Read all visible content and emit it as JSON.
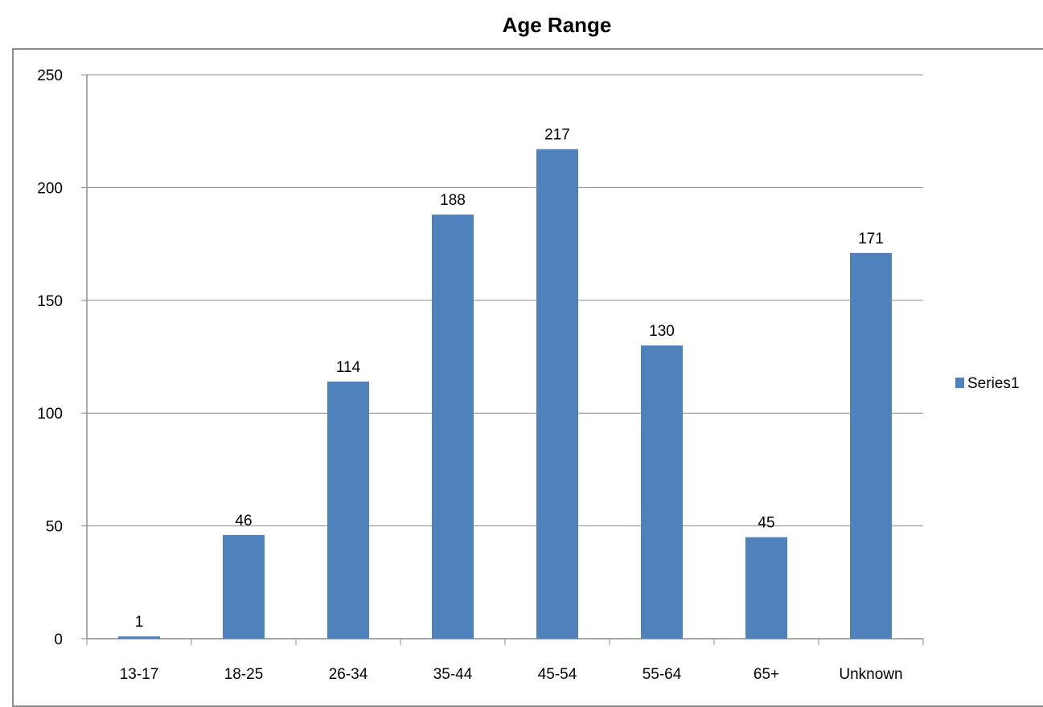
{
  "chart_data": {
    "type": "bar",
    "title": "Age Range",
    "categories": [
      "13-17",
      "18-25",
      "26-34",
      "35-44",
      "45-54",
      "55-64",
      "65+",
      "Unknown"
    ],
    "series": [
      {
        "name": "Series1",
        "color": "#4f81bd",
        "values": [
          1,
          46,
          114,
          188,
          217,
          130,
          45,
          171
        ]
      }
    ],
    "ylim": [
      0,
      250
    ],
    "yticks": [
      0,
      50,
      100,
      150,
      200,
      250
    ],
    "grid": true,
    "data_labels": true,
    "legend": {
      "placement": "right"
    }
  }
}
